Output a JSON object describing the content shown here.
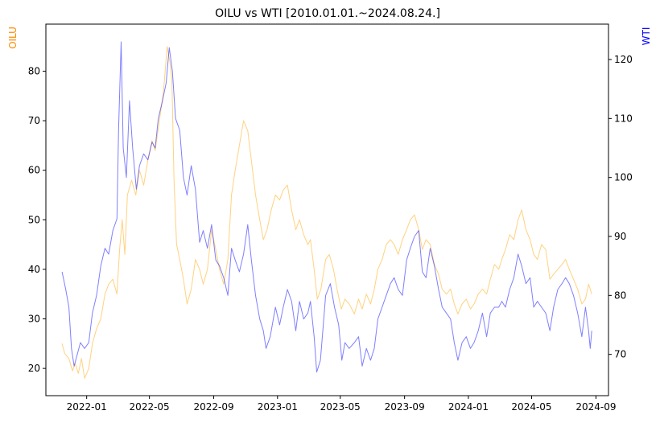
{
  "chart_data": {
    "type": "line",
    "title": "OILU vs WTI [2010.01.01.~2024.08.24.]",
    "grid": false,
    "x_range": [
      "2021-10-15",
      "2024-09-25"
    ],
    "x_ticks": [
      "2022-01",
      "2022-05",
      "2022-09",
      "2023-01",
      "2023-05",
      "2023-09",
      "2024-01",
      "2024-05",
      "2024-09"
    ],
    "left_axis": {
      "label": "OILU",
      "color": "#ff8c00",
      "ylim": [
        14.5,
        89.5
      ],
      "ticks": [
        20,
        30,
        40,
        50,
        60,
        70,
        80
      ]
    },
    "right_axis": {
      "label": "WTI",
      "color": "#0000ff",
      "ylim": [
        63,
        126
      ],
      "ticks": [
        70,
        80,
        90,
        100,
        110,
        120
      ]
    },
    "series": [
      {
        "name": "OILU",
        "axis": "left",
        "color": "#ffa500",
        "opacity": 0.5,
        "points": [
          [
            "2021-11-15",
            25
          ],
          [
            "2021-11-20",
            23
          ],
          [
            "2021-11-28",
            22
          ],
          [
            "2021-12-05",
            19.5
          ],
          [
            "2021-12-10",
            21
          ],
          [
            "2021-12-16",
            19
          ],
          [
            "2021-12-22",
            22
          ],
          [
            "2021-12-28",
            18
          ],
          [
            "2022-01-05",
            20
          ],
          [
            "2022-01-12",
            25
          ],
          [
            "2022-01-20",
            28
          ],
          [
            "2022-01-28",
            30
          ],
          [
            "2022-02-05",
            35
          ],
          [
            "2022-02-12",
            37
          ],
          [
            "2022-02-20",
            38
          ],
          [
            "2022-02-28",
            35
          ],
          [
            "2022-03-05",
            44
          ],
          [
            "2022-03-10",
            50
          ],
          [
            "2022-03-15",
            43
          ],
          [
            "2022-03-20",
            55
          ],
          [
            "2022-03-28",
            58
          ],
          [
            "2022-04-05",
            55
          ],
          [
            "2022-04-12",
            60
          ],
          [
            "2022-04-20",
            57
          ],
          [
            "2022-04-28",
            62
          ],
          [
            "2022-05-06",
            66
          ],
          [
            "2022-05-12",
            64
          ],
          [
            "2022-05-20",
            70
          ],
          [
            "2022-05-28",
            76
          ],
          [
            "2022-06-04",
            85
          ],
          [
            "2022-06-09",
            82
          ],
          [
            "2022-06-13",
            78
          ],
          [
            "2022-06-17",
            58
          ],
          [
            "2022-06-22",
            45
          ],
          [
            "2022-06-28",
            42
          ],
          [
            "2022-07-05",
            38
          ],
          [
            "2022-07-12",
            33
          ],
          [
            "2022-07-20",
            36
          ],
          [
            "2022-07-28",
            42
          ],
          [
            "2022-08-05",
            40
          ],
          [
            "2022-08-12",
            37
          ],
          [
            "2022-08-20",
            40
          ],
          [
            "2022-08-28",
            48
          ],
          [
            "2022-09-05",
            44
          ],
          [
            "2022-09-12",
            40
          ],
          [
            "2022-09-20",
            37
          ],
          [
            "2022-09-28",
            42
          ],
          [
            "2022-10-05",
            55
          ],
          [
            "2022-10-12",
            60
          ],
          [
            "2022-10-20",
            65
          ],
          [
            "2022-10-28",
            70
          ],
          [
            "2022-11-05",
            68
          ],
          [
            "2022-11-12",
            62
          ],
          [
            "2022-11-20",
            55
          ],
          [
            "2022-11-28",
            50
          ],
          [
            "2022-12-05",
            46
          ],
          [
            "2022-12-12",
            48
          ],
          [
            "2022-12-20",
            52
          ],
          [
            "2022-12-28",
            55
          ],
          [
            "2023-01-05",
            54
          ],
          [
            "2023-01-12",
            56
          ],
          [
            "2023-01-20",
            57
          ],
          [
            "2023-01-28",
            52
          ],
          [
            "2023-02-05",
            48
          ],
          [
            "2023-02-12",
            50
          ],
          [
            "2023-02-20",
            47
          ],
          [
            "2023-02-28",
            45
          ],
          [
            "2023-03-05",
            46
          ],
          [
            "2023-03-12",
            40
          ],
          [
            "2023-03-18",
            34
          ],
          [
            "2023-03-25",
            36
          ],
          [
            "2023-04-03",
            42
          ],
          [
            "2023-04-10",
            43
          ],
          [
            "2023-04-18",
            40
          ],
          [
            "2023-04-25",
            36
          ],
          [
            "2023-05-03",
            32
          ],
          [
            "2023-05-10",
            34
          ],
          [
            "2023-05-18",
            33
          ],
          [
            "2023-05-28",
            31
          ],
          [
            "2023-06-05",
            34
          ],
          [
            "2023-06-12",
            32
          ],
          [
            "2023-06-20",
            35
          ],
          [
            "2023-06-28",
            33
          ],
          [
            "2023-07-05",
            36
          ],
          [
            "2023-07-12",
            40
          ],
          [
            "2023-07-20",
            42
          ],
          [
            "2023-07-28",
            45
          ],
          [
            "2023-08-05",
            46
          ],
          [
            "2023-08-12",
            45
          ],
          [
            "2023-08-20",
            43
          ],
          [
            "2023-08-28",
            46
          ],
          [
            "2023-09-05",
            48
          ],
          [
            "2023-09-12",
            50
          ],
          [
            "2023-09-20",
            51
          ],
          [
            "2023-09-28",
            48
          ],
          [
            "2023-10-05",
            44
          ],
          [
            "2023-10-12",
            46
          ],
          [
            "2023-10-20",
            45
          ],
          [
            "2023-10-28",
            41
          ],
          [
            "2023-11-05",
            39
          ],
          [
            "2023-11-12",
            36
          ],
          [
            "2023-11-20",
            35
          ],
          [
            "2023-11-28",
            36
          ],
          [
            "2023-12-05",
            33
          ],
          [
            "2023-12-12",
            31
          ],
          [
            "2023-12-20",
            33
          ],
          [
            "2023-12-28",
            34
          ],
          [
            "2024-01-05",
            32
          ],
          [
            "2024-01-12",
            33
          ],
          [
            "2024-01-20",
            35
          ],
          [
            "2024-01-28",
            36
          ],
          [
            "2024-02-05",
            35
          ],
          [
            "2024-02-12",
            38
          ],
          [
            "2024-02-20",
            41
          ],
          [
            "2024-02-28",
            40
          ],
          [
            "2024-03-05",
            42
          ],
          [
            "2024-03-12",
            44
          ],
          [
            "2024-03-20",
            47
          ],
          [
            "2024-03-28",
            46
          ],
          [
            "2024-04-05",
            50
          ],
          [
            "2024-04-12",
            52
          ],
          [
            "2024-04-20",
            48
          ],
          [
            "2024-04-28",
            46
          ],
          [
            "2024-05-05",
            43
          ],
          [
            "2024-05-12",
            42
          ],
          [
            "2024-05-20",
            45
          ],
          [
            "2024-05-28",
            44
          ],
          [
            "2024-06-05",
            38
          ],
          [
            "2024-06-12",
            39
          ],
          [
            "2024-06-20",
            40
          ],
          [
            "2024-06-28",
            41
          ],
          [
            "2024-07-05",
            42
          ],
          [
            "2024-07-12",
            40
          ],
          [
            "2024-07-20",
            38
          ],
          [
            "2024-07-28",
            36
          ],
          [
            "2024-08-05",
            33
          ],
          [
            "2024-08-12",
            34
          ],
          [
            "2024-08-18",
            37
          ],
          [
            "2024-08-24",
            35
          ]
        ]
      },
      {
        "name": "WTI",
        "axis": "right",
        "color": "#0000ff",
        "opacity": 0.5,
        "points": [
          [
            "2021-11-15",
            84
          ],
          [
            "2021-11-22",
            81
          ],
          [
            "2021-11-28",
            78
          ],
          [
            "2021-12-03",
            71
          ],
          [
            "2021-12-08",
            68
          ],
          [
            "2021-12-14",
            70
          ],
          [
            "2021-12-20",
            72
          ],
          [
            "2021-12-28",
            71
          ],
          [
            "2022-01-05",
            72
          ],
          [
            "2022-01-12",
            77
          ],
          [
            "2022-01-20",
            80
          ],
          [
            "2022-01-28",
            85
          ],
          [
            "2022-02-05",
            88
          ],
          [
            "2022-02-12",
            87
          ],
          [
            "2022-02-20",
            91
          ],
          [
            "2022-02-28",
            93
          ],
          [
            "2022-03-03",
            108
          ],
          [
            "2022-03-08",
            123
          ],
          [
            "2022-03-12",
            105
          ],
          [
            "2022-03-18",
            100
          ],
          [
            "2022-03-24",
            113
          ],
          [
            "2022-03-30",
            105
          ],
          [
            "2022-04-06",
            98
          ],
          [
            "2022-04-12",
            102
          ],
          [
            "2022-04-20",
            104
          ],
          [
            "2022-04-28",
            103
          ],
          [
            "2022-05-06",
            106
          ],
          [
            "2022-05-12",
            105
          ],
          [
            "2022-05-18",
            110
          ],
          [
            "2022-05-26",
            113
          ],
          [
            "2022-06-02",
            116
          ],
          [
            "2022-06-08",
            122
          ],
          [
            "2022-06-14",
            118
          ],
          [
            "2022-06-20",
            110
          ],
          [
            "2022-06-28",
            108
          ],
          [
            "2022-07-05",
            100
          ],
          [
            "2022-07-12",
            97
          ],
          [
            "2022-07-20",
            102
          ],
          [
            "2022-07-28",
            98
          ],
          [
            "2022-08-05",
            89
          ],
          [
            "2022-08-12",
            91
          ],
          [
            "2022-08-20",
            88
          ],
          [
            "2022-08-28",
            92
          ],
          [
            "2022-09-05",
            86
          ],
          [
            "2022-09-12",
            85
          ],
          [
            "2022-09-20",
            83
          ],
          [
            "2022-09-28",
            80
          ],
          [
            "2022-10-05",
            88
          ],
          [
            "2022-10-12",
            86
          ],
          [
            "2022-10-20",
            84
          ],
          [
            "2022-10-28",
            87
          ],
          [
            "2022-11-05",
            92
          ],
          [
            "2022-11-12",
            86
          ],
          [
            "2022-11-20",
            80
          ],
          [
            "2022-11-28",
            76
          ],
          [
            "2022-12-05",
            74
          ],
          [
            "2022-12-10",
            71
          ],
          [
            "2022-12-18",
            73
          ],
          [
            "2022-12-28",
            78
          ],
          [
            "2023-01-05",
            75
          ],
          [
            "2023-01-12",
            78
          ],
          [
            "2023-01-20",
            81
          ],
          [
            "2023-01-28",
            79
          ],
          [
            "2023-02-05",
            74
          ],
          [
            "2023-02-12",
            79
          ],
          [
            "2023-02-20",
            76
          ],
          [
            "2023-02-28",
            77
          ],
          [
            "2023-03-05",
            79
          ],
          [
            "2023-03-12",
            73
          ],
          [
            "2023-03-17",
            67
          ],
          [
            "2023-03-24",
            69
          ],
          [
            "2023-04-03",
            80
          ],
          [
            "2023-04-12",
            82
          ],
          [
            "2023-04-20",
            78
          ],
          [
            "2023-04-28",
            75
          ],
          [
            "2023-05-04",
            69
          ],
          [
            "2023-05-10",
            72
          ],
          [
            "2023-05-18",
            71
          ],
          [
            "2023-05-28",
            72
          ],
          [
            "2023-06-05",
            73
          ],
          [
            "2023-06-12",
            68
          ],
          [
            "2023-06-20",
            71
          ],
          [
            "2023-06-28",
            69
          ],
          [
            "2023-07-05",
            71
          ],
          [
            "2023-07-12",
            76
          ],
          [
            "2023-07-20",
            78
          ],
          [
            "2023-07-28",
            80
          ],
          [
            "2023-08-05",
            82
          ],
          [
            "2023-08-12",
            83
          ],
          [
            "2023-08-20",
            81
          ],
          [
            "2023-08-28",
            80
          ],
          [
            "2023-09-05",
            86
          ],
          [
            "2023-09-12",
            88
          ],
          [
            "2023-09-20",
            90
          ],
          [
            "2023-09-28",
            91
          ],
          [
            "2023-10-05",
            84
          ],
          [
            "2023-10-12",
            83
          ],
          [
            "2023-10-20",
            88
          ],
          [
            "2023-10-28",
            85
          ],
          [
            "2023-11-05",
            81
          ],
          [
            "2023-11-12",
            78
          ],
          [
            "2023-11-20",
            77
          ],
          [
            "2023-11-28",
            76
          ],
          [
            "2023-12-05",
            72
          ],
          [
            "2023-12-12",
            69
          ],
          [
            "2023-12-20",
            72
          ],
          [
            "2023-12-28",
            73
          ],
          [
            "2024-01-05",
            71
          ],
          [
            "2024-01-12",
            72
          ],
          [
            "2024-01-20",
            74
          ],
          [
            "2024-01-28",
            77
          ],
          [
            "2024-02-05",
            73
          ],
          [
            "2024-02-12",
            77
          ],
          [
            "2024-02-20",
            78
          ],
          [
            "2024-02-28",
            78
          ],
          [
            "2024-03-05",
            79
          ],
          [
            "2024-03-12",
            78
          ],
          [
            "2024-03-20",
            81
          ],
          [
            "2024-03-28",
            83
          ],
          [
            "2024-04-05",
            87
          ],
          [
            "2024-04-12",
            85
          ],
          [
            "2024-04-20",
            82
          ],
          [
            "2024-04-28",
            83
          ],
          [
            "2024-05-05",
            78
          ],
          [
            "2024-05-12",
            79
          ],
          [
            "2024-05-20",
            78
          ],
          [
            "2024-05-28",
            77
          ],
          [
            "2024-06-05",
            74
          ],
          [
            "2024-06-12",
            78
          ],
          [
            "2024-06-20",
            81
          ],
          [
            "2024-06-28",
            82
          ],
          [
            "2024-07-05",
            83
          ],
          [
            "2024-07-12",
            82
          ],
          [
            "2024-07-20",
            80
          ],
          [
            "2024-07-28",
            77
          ],
          [
            "2024-08-05",
            73
          ],
          [
            "2024-08-12",
            78
          ],
          [
            "2024-08-18",
            74
          ],
          [
            "2024-08-21",
            71
          ],
          [
            "2024-08-24",
            74
          ]
        ]
      }
    ]
  }
}
